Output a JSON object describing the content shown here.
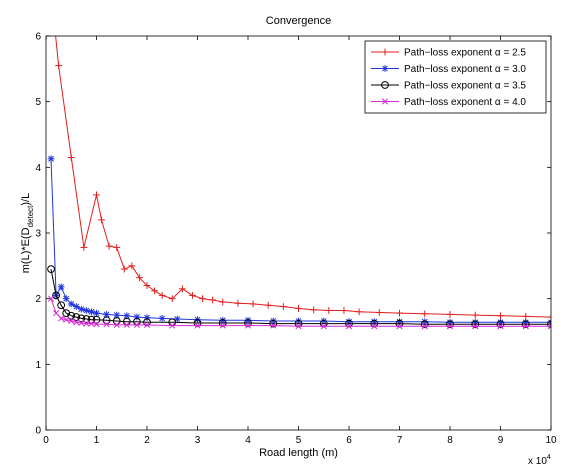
{
  "chart_data": {
    "type": "line",
    "title": "Convergence",
    "xlabel": "Road length (m)",
    "ylabel_parts": {
      "pre": "m(L)*E(D",
      "sub": "detect",
      "post": ")/L"
    },
    "x_multiplier_text": {
      "base": "x 10",
      "exp": "4"
    },
    "xlim": [
      0,
      100000
    ],
    "ylim": [
      0,
      6
    ],
    "x_tick_labels": [
      "0",
      "1",
      "2",
      "3",
      "4",
      "5",
      "6",
      "7",
      "8",
      "9",
      "10"
    ],
    "y_tick_labels": [
      "0",
      "1",
      "2",
      "3",
      "4",
      "5",
      "6"
    ],
    "legend_position": "top-right",
    "grid": false,
    "series": [
      {
        "name": "Path−loss exponent α = 2.5",
        "color": "#e41e1e",
        "marker": "plus",
        "x": [
          2500,
          5000,
          7500,
          10000,
          11000,
          12500,
          14000,
          15500,
          17000,
          18500,
          20000,
          21500,
          23000,
          25000,
          27000,
          29000,
          31000,
          33000,
          35000,
          38000,
          41000,
          44000,
          47000,
          50000,
          53000,
          56000,
          59000,
          62000,
          66000,
          70000,
          75000,
          80000,
          85000,
          90000,
          95000,
          100000
        ],
        "y": [
          5.55,
          4.15,
          2.78,
          3.58,
          3.2,
          2.8,
          2.78,
          2.45,
          2.5,
          2.32,
          2.2,
          2.12,
          2.05,
          2.0,
          2.15,
          2.05,
          2.0,
          1.98,
          1.95,
          1.93,
          1.92,
          1.9,
          1.88,
          1.85,
          1.83,
          1.82,
          1.82,
          1.8,
          1.79,
          1.78,
          1.77,
          1.76,
          1.75,
          1.74,
          1.73,
          1.72
        ]
      },
      {
        "name": "Path−loss exponent α = 3.0",
        "color": "#1f35e0",
        "marker": "star",
        "x": [
          1000,
          2000,
          3000,
          4000,
          5000,
          6000,
          7000,
          8000,
          9000,
          10000,
          12000,
          14000,
          16000,
          18000,
          20000,
          23000,
          26000,
          30000,
          35000,
          40000,
          45000,
          50000,
          55000,
          60000,
          65000,
          70000,
          75000,
          80000,
          85000,
          90000,
          95000,
          100000
        ],
        "y": [
          4.13,
          2.05,
          2.18,
          2.0,
          1.92,
          1.88,
          1.84,
          1.82,
          1.8,
          1.78,
          1.76,
          1.75,
          1.74,
          1.72,
          1.71,
          1.7,
          1.69,
          1.68,
          1.67,
          1.67,
          1.66,
          1.66,
          1.66,
          1.65,
          1.65,
          1.65,
          1.65,
          1.64,
          1.64,
          1.64,
          1.64,
          1.64
        ]
      },
      {
        "name": "Path−loss exponent α = 3.5",
        "color": "#000000",
        "marker": "circle",
        "x": [
          1000,
          2000,
          3000,
          4000,
          5000,
          6000,
          7000,
          8000,
          9000,
          10000,
          12000,
          14000,
          16000,
          18000,
          20000,
          25000,
          30000,
          35000,
          40000,
          45000,
          50000,
          55000,
          60000,
          65000,
          70000,
          75000,
          80000,
          85000,
          90000,
          95000,
          100000
        ],
        "y": [
          2.45,
          2.05,
          1.9,
          1.78,
          1.74,
          1.72,
          1.7,
          1.69,
          1.68,
          1.68,
          1.67,
          1.66,
          1.65,
          1.65,
          1.64,
          1.64,
          1.63,
          1.63,
          1.63,
          1.62,
          1.62,
          1.62,
          1.62,
          1.62,
          1.62,
          1.61,
          1.61,
          1.61,
          1.61,
          1.61,
          1.61
        ]
      },
      {
        "name": "Path−loss exponent α = 4.0",
        "color": "#d62ad6",
        "marker": "x",
        "x": [
          1000,
          2000,
          3000,
          4000,
          5000,
          6000,
          7000,
          8000,
          9000,
          10000,
          12000,
          14000,
          16000,
          18000,
          20000,
          25000,
          30000,
          35000,
          40000,
          45000,
          50000,
          55000,
          60000,
          65000,
          70000,
          75000,
          80000,
          85000,
          90000,
          95000,
          100000
        ],
        "y": [
          2.0,
          1.78,
          1.7,
          1.68,
          1.66,
          1.64,
          1.63,
          1.62,
          1.62,
          1.61,
          1.61,
          1.6,
          1.6,
          1.6,
          1.6,
          1.59,
          1.59,
          1.59,
          1.59,
          1.59,
          1.58,
          1.58,
          1.58,
          1.58,
          1.58,
          1.58,
          1.58,
          1.58,
          1.58,
          1.58,
          1.58
        ]
      }
    ]
  }
}
